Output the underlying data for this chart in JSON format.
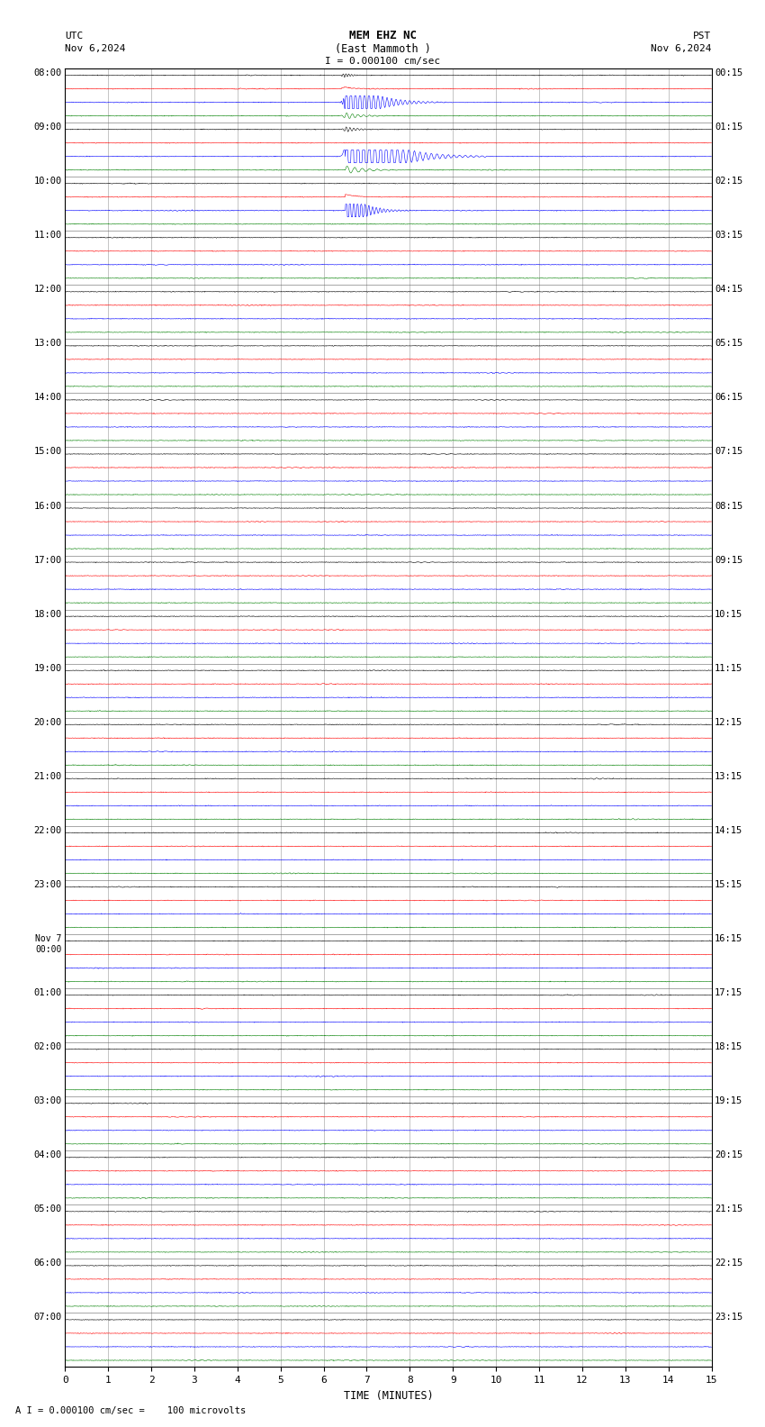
{
  "title_line1": "MEM EHZ NC",
  "title_line2": "(East Mammoth )",
  "scale_text": "I = 0.000100 cm/sec",
  "footer_text": "A I = 0.000100 cm/sec =    100 microvolts",
  "xlabel": "TIME (MINUTES)",
  "left_label_line1": "UTC",
  "left_label_line2": "Nov 6,2024",
  "right_label_line1": "PST",
  "right_label_line2": "Nov 6,2024",
  "left_times": [
    "08:00",
    "09:00",
    "10:00",
    "11:00",
    "12:00",
    "13:00",
    "14:00",
    "15:00",
    "16:00",
    "17:00",
    "18:00",
    "19:00",
    "20:00",
    "21:00",
    "22:00",
    "23:00",
    "Nov 7",
    "00:00",
    "01:00",
    "02:00",
    "03:00",
    "04:00",
    "05:00",
    "06:00",
    "07:00"
  ],
  "right_times": [
    "00:15",
    "01:15",
    "02:15",
    "03:15",
    "04:15",
    "05:15",
    "06:15",
    "07:15",
    "08:15",
    "09:15",
    "10:15",
    "11:15",
    "12:15",
    "13:15",
    "14:15",
    "15:15",
    "16:15",
    "17:15",
    "18:15",
    "19:15",
    "20:15",
    "21:15",
    "22:15",
    "23:15"
  ],
  "n_rows": 24,
  "traces_per_row": 4,
  "colors": [
    "black",
    "red",
    "blue",
    "green"
  ],
  "bg_color": "white",
  "grid_color": "#999999",
  "minutes_per_row": 15,
  "x_ticks": [
    0,
    1,
    2,
    3,
    4,
    5,
    6,
    7,
    8,
    9,
    10,
    11,
    12,
    13,
    14,
    15
  ],
  "noise_amplitude": 0.025,
  "eq_minute": 6.5,
  "eq_blue_amp": 2.5,
  "eq_other_amp": 0.5
}
